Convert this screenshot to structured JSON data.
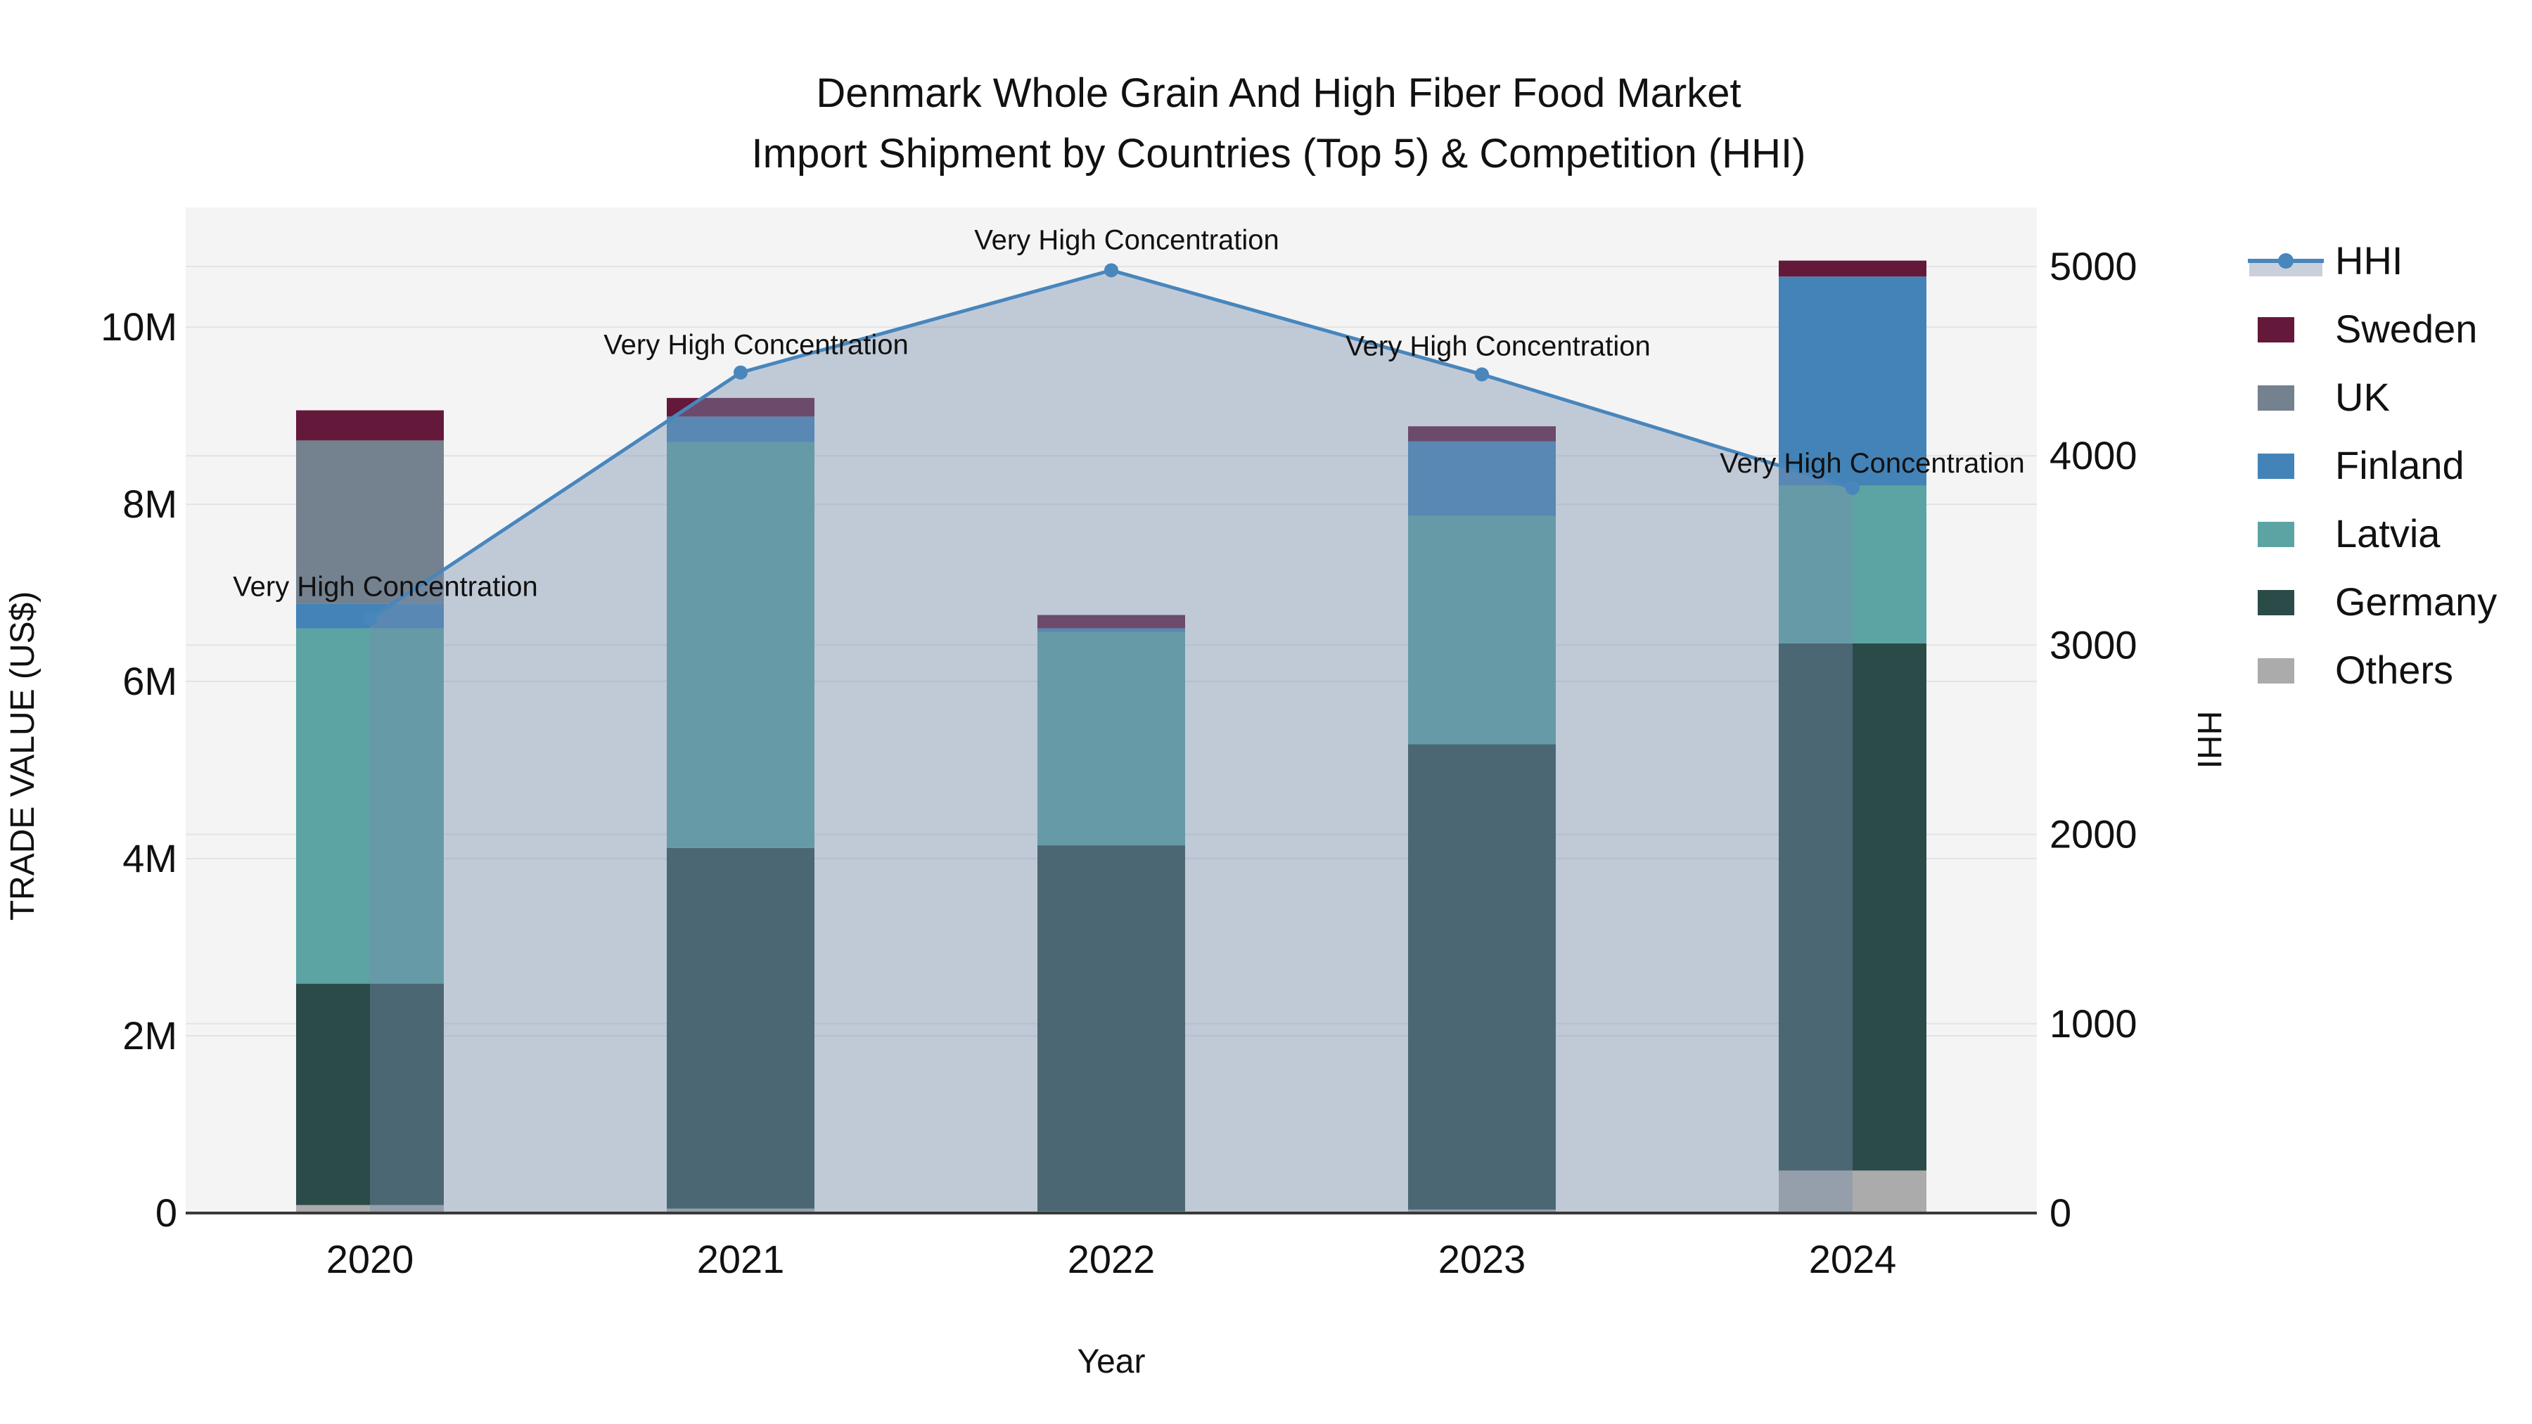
{
  "title": {
    "line1": "Denmark Whole Grain And High Fiber Food Market",
    "line2": "Import Shipment by Countries (Top 5) & Competition (HHI)"
  },
  "chart_data": {
    "type": "combo-stacked-bar-line",
    "categories": [
      "2020",
      "2021",
      "2022",
      "2023",
      "2024"
    ],
    "xlabel": "Year",
    "y_left": {
      "label": "TRADE VALUE (US$)",
      "unit": "million US$",
      "tick_labels": [
        "0",
        "2M",
        "4M",
        "6M",
        "8M",
        "10M"
      ],
      "tick_values": [
        0,
        2,
        4,
        6,
        8,
        10
      ],
      "ylim": [
        0,
        11.35
      ],
      "grid": true
    },
    "y_right": {
      "label": "HHI",
      "tick_labels": [
        "0",
        "1000",
        "2000",
        "3000",
        "4000",
        "5000"
      ],
      "tick_values": [
        0,
        1000,
        2000,
        3000,
        4000,
        5000
      ],
      "ylim": [
        0,
        5312
      ],
      "grid": true
    },
    "bar_series_bottom_to_top": [
      {
        "name": "Others",
        "color": "#ABABAB",
        "values": [
          0.09,
          0.05,
          0.02,
          0.04,
          0.48
        ]
      },
      {
        "name": "Germany",
        "color": "#2B4B49",
        "values": [
          2.5,
          4.07,
          4.13,
          5.25,
          5.95
        ]
      },
      {
        "name": "Latvia",
        "color": "#5CA3A3",
        "values": [
          4.01,
          4.58,
          2.41,
          2.58,
          1.78
        ]
      },
      {
        "name": "Finland",
        "color": "#4383B7",
        "values": [
          0.28,
          0.29,
          0.04,
          0.84,
          2.36
        ]
      },
      {
        "name": "UK",
        "color": "#74818F",
        "values": [
          1.84,
          0.0,
          0.0,
          0.0,
          0.0
        ]
      },
      {
        "name": "Sweden",
        "color": "#64193B",
        "values": [
          0.34,
          0.21,
          0.15,
          0.17,
          0.18
        ]
      }
    ],
    "bar_totals": [
      9.06,
      9.2,
      6.75,
      8.88,
      10.75
    ],
    "line_series": {
      "name": "HHI",
      "color": "#4886BC",
      "area_fill": "rgba(120,142,175,0.42)",
      "values": [
        3140,
        4440,
        4980,
        4430,
        3830
      ]
    },
    "annotations": [
      {
        "category": "2020",
        "label": "Very High Concentration"
      },
      {
        "category": "2021",
        "label": "Very High Concentration"
      },
      {
        "category": "2022",
        "label": "Very High Concentration"
      },
      {
        "category": "2023",
        "label": "Very High Concentration"
      },
      {
        "category": "2024",
        "label": "Very High Concentration"
      }
    ],
    "legend": {
      "items": [
        {
          "label": "HHI",
          "type": "line",
          "color": "#4886BC"
        },
        {
          "label": "Sweden",
          "type": "swatch",
          "color": "#64193B"
        },
        {
          "label": "UK",
          "type": "swatch",
          "color": "#74818F"
        },
        {
          "label": "Finland",
          "type": "swatch",
          "color": "#4383B7"
        },
        {
          "label": "Latvia",
          "type": "swatch",
          "color": "#5CA3A3"
        },
        {
          "label": "Germany",
          "type": "swatch",
          "color": "#2B4B49"
        },
        {
          "label": "Others",
          "type": "swatch",
          "color": "#ABABAB"
        }
      ],
      "legend_position": "right"
    },
    "style": {
      "plot_bg": "#F4F4F5",
      "grid_color": "#E4E2E6",
      "axis_line_color": "#3A3A3A",
      "text_color": "#111111"
    }
  }
}
